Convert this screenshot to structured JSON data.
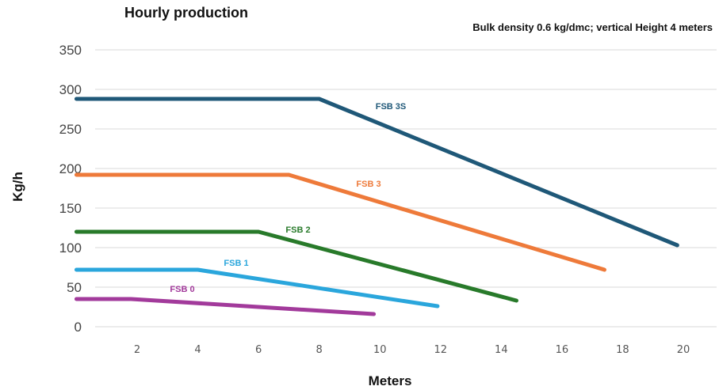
{
  "chart_data": {
    "type": "line",
    "title": "Hourly production",
    "subtitle": "Bulk density 0.6 kg/dmc; vertical Height 4 meters",
    "xlabel": "Meters",
    "ylabel": "Kg/h",
    "xlim": [
      0,
      21
    ],
    "ylim": [
      0,
      350
    ],
    "yticks": [
      0,
      50,
      100,
      150,
      200,
      250,
      300,
      350
    ],
    "xticks": [
      2,
      4,
      6,
      8,
      10,
      12,
      14,
      16,
      18,
      20
    ],
    "grid": true,
    "series": [
      {
        "name": "FSB 3S",
        "color": "#1f5878",
        "points": [
          [
            0,
            288
          ],
          [
            8,
            288
          ],
          [
            19.8,
            103
          ]
        ]
      },
      {
        "name": "FSB 3",
        "color": "#ee7a3a",
        "points": [
          [
            0,
            192
          ],
          [
            7,
            192
          ],
          [
            17.4,
            72
          ]
        ]
      },
      {
        "name": "FSB 2",
        "color": "#287a2a",
        "points": [
          [
            0,
            120
          ],
          [
            6,
            120
          ],
          [
            14.5,
            33
          ]
        ]
      },
      {
        "name": "FSB 1",
        "color": "#2aa6dc",
        "points": [
          [
            0,
            72
          ],
          [
            4,
            72
          ],
          [
            11.9,
            26
          ]
        ]
      },
      {
        "name": "FSB 0",
        "color": "#a23a9b",
        "points": [
          [
            0,
            35
          ],
          [
            1.8,
            35
          ],
          [
            9.8,
            16
          ]
        ]
      }
    ]
  }
}
